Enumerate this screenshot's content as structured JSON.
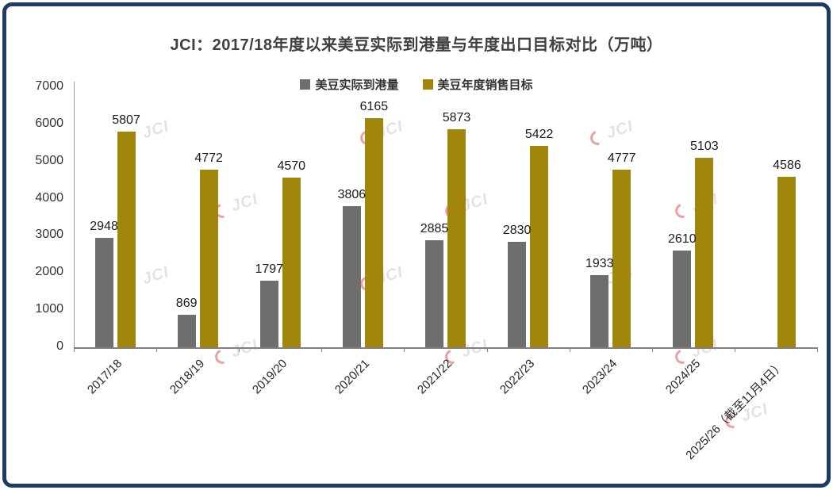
{
  "title": "JCI：2017/18年度以来美豆实际到港量与年度出口目标对比（万吨）",
  "watermark": {
    "text": "JCI"
  },
  "chart_data": {
    "type": "bar",
    "title": "JCI：2017/18年度以来美豆实际到港量与年度出口目标对比（万吨）",
    "categories": [
      "2017/18",
      "2018/19",
      "2019/20",
      "2020/21",
      "2021/22",
      "2022/23",
      "2023/24",
      "2024/25",
      "2025/26（截至11月4日）"
    ],
    "series": [
      {
        "name": "美豆实际到港量",
        "color": "#6e6e6e",
        "values": [
          2948,
          869,
          1797,
          3806,
          2885,
          2830,
          1933,
          2610,
          null
        ]
      },
      {
        "name": "美豆年度销售目标",
        "color": "#a0860b",
        "values": [
          5807,
          4772,
          4570,
          6165,
          5873,
          5422,
          4777,
          5103,
          4586
        ]
      }
    ],
    "xlabel": "",
    "ylabel": "",
    "ylim": [
      0,
      7000
    ],
    "yticks": [
      0,
      1000,
      2000,
      3000,
      4000,
      5000,
      6000,
      7000
    ],
    "grid": false,
    "legend_position": "top",
    "data_labels": true
  }
}
